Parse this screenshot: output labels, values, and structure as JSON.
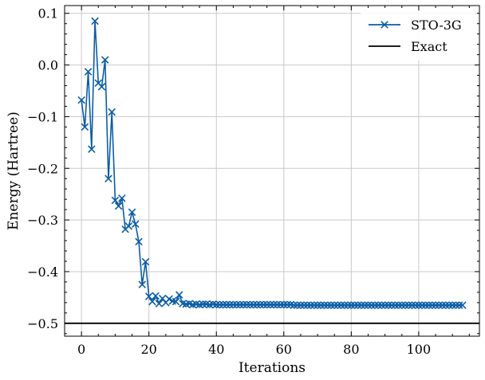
{
  "chart_data": {
    "type": "line",
    "title": "",
    "xlabel": "Iterations",
    "ylabel": "Energy (Hartree)",
    "xlim": [
      -5,
      118
    ],
    "ylim": [
      -0.525,
      0.115
    ],
    "x_ticks": [
      0,
      20,
      40,
      60,
      80,
      100
    ],
    "x_tick_labels": [
      "0",
      "20",
      "40",
      "60",
      "80",
      "100"
    ],
    "y_ticks": [
      0.1,
      0.0,
      -0.1,
      -0.2,
      -0.3,
      -0.4,
      -0.5
    ],
    "y_tick_labels": [
      "0.1",
      "0.0",
      "−0.1",
      "−0.2",
      "−0.3",
      "−0.4",
      "−0.5"
    ],
    "grid": true,
    "legend_position": "top-right",
    "series": [
      {
        "name": "STO-3G",
        "color": "#0c5da5",
        "marker": "x",
        "x": [
          0,
          1,
          2,
          3,
          4,
          5,
          6,
          7,
          8,
          9,
          10,
          11,
          12,
          13,
          14,
          15,
          16,
          17,
          18,
          19,
          20,
          21,
          22,
          23,
          24,
          25,
          26,
          27,
          28,
          29,
          30,
          31,
          32,
          33,
          34,
          35,
          36,
          37,
          38,
          39,
          40,
          41,
          42,
          43,
          44,
          45,
          46,
          47,
          48,
          49,
          50,
          51,
          52,
          53,
          54,
          55,
          56,
          57,
          58,
          59,
          60,
          61,
          62,
          63,
          64,
          65,
          66,
          67,
          68,
          69,
          70,
          71,
          72,
          73,
          74,
          75,
          76,
          77,
          78,
          79,
          80,
          81,
          82,
          83,
          84,
          85,
          86,
          87,
          88,
          89,
          90,
          91,
          92,
          93,
          94,
          95,
          96,
          97,
          98,
          99,
          100,
          101,
          102,
          103,
          104,
          105,
          106,
          107,
          108,
          109,
          110,
          111,
          112,
          113
        ],
        "y": [
          -0.068,
          -0.12,
          -0.013,
          -0.163,
          0.085,
          -0.035,
          -0.042,
          0.01,
          -0.22,
          -0.091,
          -0.262,
          -0.273,
          -0.258,
          -0.318,
          -0.312,
          -0.285,
          -0.308,
          -0.342,
          -0.425,
          -0.381,
          -0.448,
          -0.458,
          -0.447,
          -0.462,
          -0.452,
          -0.46,
          -0.453,
          -0.457,
          -0.458,
          -0.445,
          -0.462,
          -0.463,
          -0.462,
          -0.464,
          -0.463,
          -0.464,
          -0.463,
          -0.463,
          -0.464,
          -0.463,
          -0.464,
          -0.464,
          -0.464,
          -0.464,
          -0.464,
          -0.464,
          -0.464,
          -0.464,
          -0.464,
          -0.464,
          -0.464,
          -0.464,
          -0.464,
          -0.464,
          -0.464,
          -0.464,
          -0.464,
          -0.464,
          -0.464,
          -0.464,
          -0.464,
          -0.464,
          -0.464,
          -0.465,
          -0.465,
          -0.465,
          -0.465,
          -0.465,
          -0.465,
          -0.465,
          -0.465,
          -0.465,
          -0.465,
          -0.465,
          -0.465,
          -0.465,
          -0.465,
          -0.465,
          -0.465,
          -0.465,
          -0.465,
          -0.465,
          -0.465,
          -0.465,
          -0.465,
          -0.465,
          -0.465,
          -0.465,
          -0.465,
          -0.465,
          -0.465,
          -0.465,
          -0.465,
          -0.465,
          -0.465,
          -0.465,
          -0.465,
          -0.465,
          -0.465,
          -0.465,
          -0.465,
          -0.465,
          -0.465,
          -0.465,
          -0.465,
          -0.465,
          -0.465,
          -0.465,
          -0.465,
          -0.465,
          -0.465,
          -0.465,
          -0.465,
          -0.465
        ]
      },
      {
        "name": "Exact",
        "color": "#000000",
        "marker": "none",
        "y_constant": -0.5
      }
    ]
  }
}
